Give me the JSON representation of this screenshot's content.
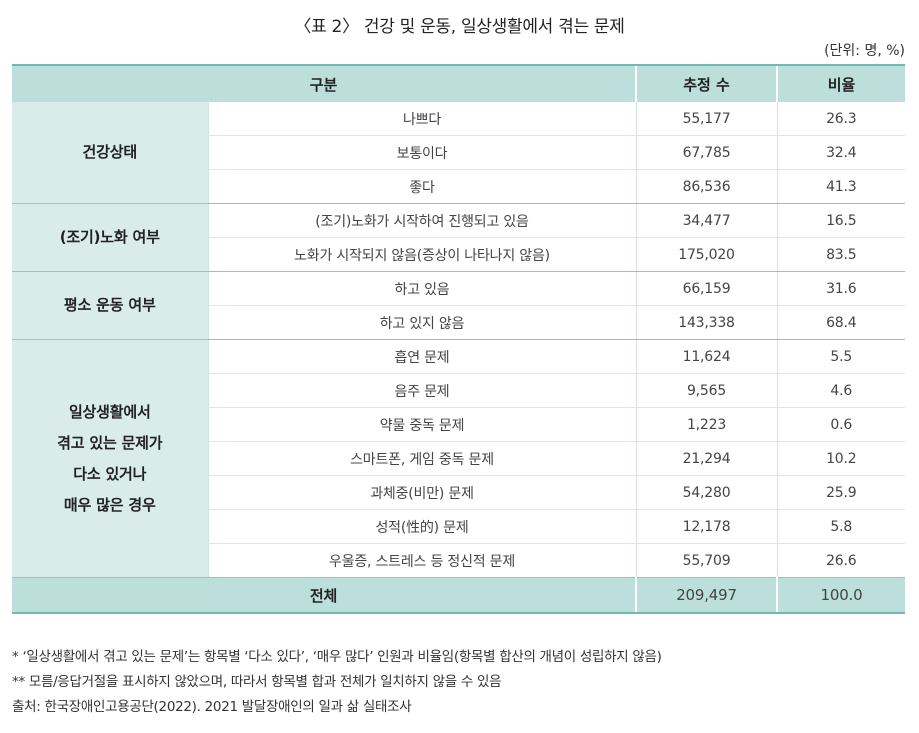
{
  "title": "〈표 2〉 건강 및 운동, 일상생활에서 겪는 문제",
  "unit": "(단위: 명, %)",
  "headers": {
    "category": "구분",
    "count": "추정 수",
    "ratio": "비율"
  },
  "groups": [
    {
      "label": "건강상태",
      "rows": [
        {
          "item": "나쁘다",
          "count": "55,177",
          "ratio": "26.3"
        },
        {
          "item": "보통이다",
          "count": "67,785",
          "ratio": "32.4"
        },
        {
          "item": "좋다",
          "count": "86,536",
          "ratio": "41.3"
        }
      ]
    },
    {
      "label": "(조기)노화 여부",
      "rows": [
        {
          "item": "(조기)노화가 시작하여 진행되고 있음",
          "count": "34,477",
          "ratio": "16.5"
        },
        {
          "item": "노화가 시작되지 않음(증상이 나타나지 않음)",
          "count": "175,020",
          "ratio": "83.5"
        }
      ]
    },
    {
      "label": "평소 운동 여부",
      "rows": [
        {
          "item": "하고 있음",
          "count": "66,159",
          "ratio": "31.6"
        },
        {
          "item": "하고 있지 않음",
          "count": "143,338",
          "ratio": "68.4"
        }
      ]
    },
    {
      "label_lines": [
        "일상생활에서",
        "겪고 있는 문제가",
        "다소 있거나",
        "매우 많은 경우"
      ],
      "rows": [
        {
          "item": "흡연 문제",
          "count": "11,624",
          "ratio": "5.5"
        },
        {
          "item": "음주 문제",
          "count": "9,565",
          "ratio": "4.6"
        },
        {
          "item": "약물 중독 문제",
          "count": "1,223",
          "ratio": "0.6"
        },
        {
          "item": "스마트폰, 게임 중독 문제",
          "count": "21,294",
          "ratio": "10.2"
        },
        {
          "item": "과체중(비만) 문제",
          "count": "54,280",
          "ratio": "25.9"
        },
        {
          "item": "성적(性的) 문제",
          "count": "12,178",
          "ratio": "5.8"
        },
        {
          "item": "우울증, 스트레스 등 정신적 문제",
          "count": "55,709",
          "ratio": "26.6"
        }
      ]
    }
  ],
  "total": {
    "label": "전체",
    "count": "209,497",
    "ratio": "100.0"
  },
  "notes": [
    " * ‘일상생활에서 겪고 있는 문제’는 항목별 ‘다소 있다’, ‘매우 많다’ 인원과 비율임(항목별 합산의 개념이 성립하지 않음)",
    "** 모름/응답거절을 표시하지 않았으며, 따라서 항목별 합과 전체가 일치하지 않을 수 있음",
    "출처: 한국장애인고용공단(2022). 2021 발달장애인의 일과 삶 실태조사"
  ]
}
